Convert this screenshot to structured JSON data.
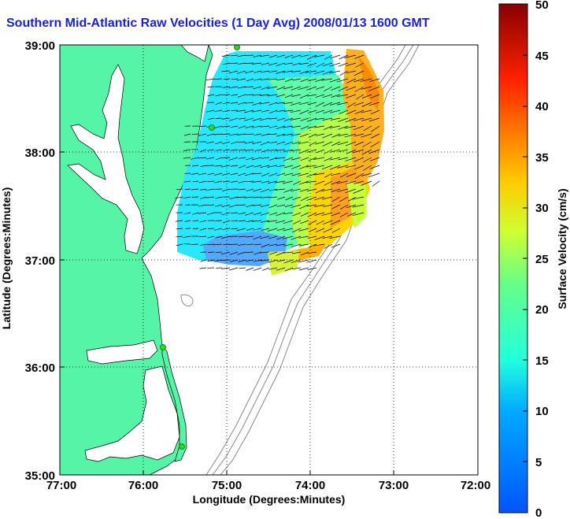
{
  "title": "Southern Mid-Atlantic Raw Velocities (1 Day Avg) 2008/01/13 1600 GMT",
  "axes": {
    "xlabel": "Longitude (Degrees:Minutes)",
    "ylabel": "Latitude (Degrees:Minutes)",
    "x_ticks": [
      "77:00",
      "76:00",
      "75:00",
      "74:00",
      "73:00",
      "72:00"
    ],
    "y_ticks": [
      "39:00",
      "38:00",
      "37:00",
      "36:00",
      "35:00"
    ],
    "x_range": [
      -77,
      -72
    ],
    "y_range": [
      35,
      39
    ],
    "grid": "dotted"
  },
  "colorbar": {
    "label": "Surface Velocity (cm/s)",
    "ticks": [
      "0",
      "5",
      "10",
      "15",
      "20",
      "25",
      "30",
      "35",
      "40",
      "45",
      "50"
    ],
    "min": 0,
    "max": 50
  },
  "colors": {
    "land": "#55f4a6",
    "title": "#1a22d6",
    "coast_stations": "#22dd22",
    "bathymetry": "#888888"
  }
}
